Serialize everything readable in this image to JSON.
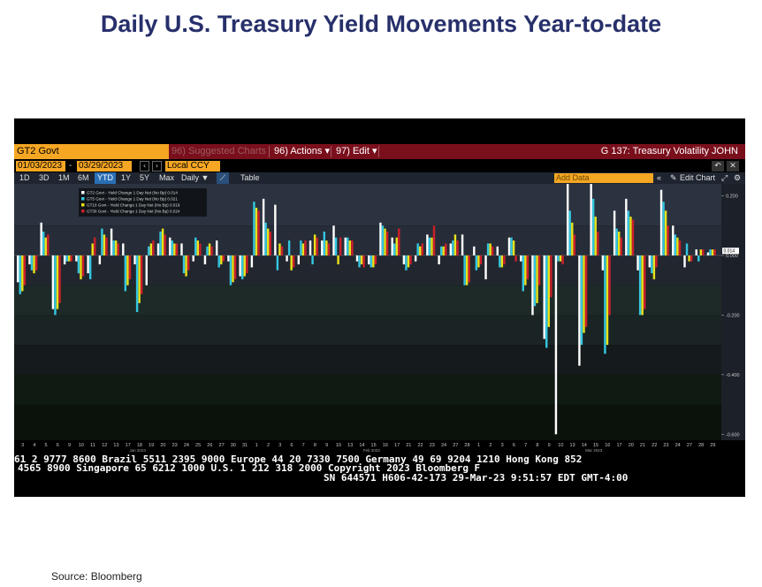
{
  "page": {
    "title": "Daily U.S. Treasury Yield Movements Year-to-date",
    "source": "Source: Bloomberg"
  },
  "terminal": {
    "ticker": "GT2 Govt",
    "suggested": "96) Suggested Charts",
    "actions": "96) Actions ▾",
    "edit": "97) Edit ▾",
    "right_title": "G 137: Treasury Volatility JOHN",
    "start_date": "01/03/2023",
    "end_date": "03/29/2023",
    "currency": "Local CCY",
    "ranges": [
      "1D",
      "3D",
      "1M",
      "6M",
      "YTD",
      "1Y",
      "5Y",
      "Max"
    ],
    "active_range": "YTD",
    "frequency": "Daily ▼",
    "table": "Table",
    "add_data": "Add Data",
    "edit_chart": "Edit Chart",
    "footer_lines": [
      "61 2 9777 8600 Brazil 5511 2395 9000 Europe 44 20 7330 7500 Germany 49 69 9204 1210 Hong Kong 852",
      "4565 8900      Singapore 65 6212 1000     U.S. 1 212 318 2000     Copyright 2023 Bloomberg F",
      "SN 644571 H606-42-173 29-Mar-23  9:51:57 EDT  GMT-4:00"
    ]
  },
  "colors": {
    "gt2": "#ffffff",
    "gt5": "#33c6e0",
    "gt10": "#e8e21a",
    "gt30": "#cc1f2a",
    "accent_orange": "#f5a623",
    "header_red": "#7a0f1c",
    "title_navy": "#27306b"
  },
  "chart_data": {
    "type": "bar",
    "title": "",
    "xlabel": "",
    "ylabel": "",
    "ylim": [
      -0.62,
      0.24
    ],
    "yticks": [
      0.2,
      0.0,
      -0.2,
      -0.4,
      -0.6
    ],
    "ytick_labels": [
      "0.200",
      "0.000",
      "-0.200",
      "-0.400",
      "-0.600"
    ],
    "last_value_label": "0.014",
    "categories": [
      "3",
      "4",
      "5",
      "6",
      "9",
      "10",
      "11",
      "12",
      "13",
      "17",
      "18",
      "19",
      "20",
      "23",
      "24",
      "25",
      "26",
      "27",
      "30",
      "31",
      "1",
      "2",
      "3",
      "6",
      "7",
      "8",
      "9",
      "10",
      "13",
      "14",
      "15",
      "16",
      "17",
      "21",
      "22",
      "23",
      "24",
      "27",
      "28",
      "1",
      "2",
      "3",
      "6",
      "7",
      "8",
      "9",
      "10",
      "13",
      "14",
      "15",
      "16",
      "17",
      "20",
      "21",
      "22",
      "23",
      "24",
      "27",
      "28",
      "29"
    ],
    "month_labels": [
      {
        "label": "Jan 2023",
        "at": "3"
      },
      {
        "label": "Feb 2023",
        "at": "1"
      },
      {
        "label": "Mar 2023",
        "at": "1"
      }
    ],
    "legend": [
      "GT2 Govt - Yield Change 1 Day Net (No Bp)  0.014",
      "GT5 Govt - Yield Change 1 Day Net (No Bp)  0.021",
      "GT10 Govt - Yield Change 1 Day Net (No Bp)  0.019",
      "GT30 Govt - Yield Change 1 Day Net (No Bp)  0.024"
    ],
    "series": [
      {
        "name": "GT2 Govt - Yield Change 1 Day Net (No Bp)",
        "values": [
          -0.09,
          -0.03,
          0.11,
          -0.18,
          -0.03,
          -0.02,
          -0.06,
          -0.03,
          0.09,
          0.04,
          -0.03,
          -0.1,
          0.04,
          0.06,
          0.04,
          -0.02,
          -0.03,
          0.05,
          -0.02,
          -0.07,
          -0.04,
          0.19,
          0.17,
          -0.02,
          -0.03,
          0.05,
          0.05,
          0.1,
          0.06,
          -0.02,
          -0.03,
          0.11,
          0.06,
          -0.03,
          -0.02,
          0.07,
          -0.03,
          0.04,
          0.07,
          0.03,
          -0.08,
          0.03,
          0.06,
          -0.02,
          -0.2,
          -0.28,
          -0.6,
          0.27,
          -0.37,
          0.27,
          -0.05,
          0.15,
          0.19,
          -0.05,
          -0.04,
          0.22,
          0.1,
          -0.04,
          0.02,
          0.01
        ]
      },
      {
        "name": "GT5 Govt - Yield Change 1 Day Net (No Bp)",
        "values": [
          -0.13,
          -0.05,
          0.08,
          -0.2,
          -0.02,
          -0.06,
          -0.08,
          0.09,
          0.05,
          -0.12,
          -0.19,
          0.03,
          0.08,
          0.05,
          -0.06,
          0.06,
          0.03,
          -0.04,
          -0.1,
          -0.08,
          0.18,
          0.11,
          -0.05,
          0.05,
          0.05,
          -0.03,
          0.08,
          0.06,
          0.06,
          -0.04,
          -0.04,
          0.1,
          0.04,
          -0.05,
          0.04,
          0.06,
          0.03,
          0.05,
          -0.1,
          -0.05,
          0.04,
          -0.04,
          0.06,
          -0.12,
          -0.17,
          -0.31,
          -0.02,
          0.15,
          -0.3,
          0.19,
          -0.33,
          0.09,
          0.15,
          -0.2,
          -0.06,
          0.18,
          0.07,
          0.04,
          -0.02,
          0.02
        ]
      },
      {
        "name": "GT10 Govt - Yield Change 1 Day Net (No Bp)",
        "values": [
          -0.12,
          -0.06,
          0.06,
          -0.18,
          -0.02,
          -0.08,
          0.04,
          0.07,
          0.05,
          -0.1,
          -0.16,
          0.04,
          0.09,
          0.04,
          -0.07,
          0.05,
          0.04,
          -0.03,
          -0.09,
          -0.07,
          0.16,
          0.09,
          0.04,
          -0.05,
          0.04,
          0.07,
          0.05,
          -0.03,
          0.05,
          -0.03,
          -0.04,
          0.09,
          0.06,
          -0.04,
          0.03,
          0.06,
          0.03,
          0.07,
          -0.1,
          -0.04,
          0.04,
          -0.04,
          0.05,
          -0.1,
          -0.16,
          -0.24,
          -0.02,
          0.11,
          -0.26,
          0.13,
          -0.3,
          0.08,
          0.13,
          -0.2,
          -0.08,
          0.15,
          0.06,
          -0.02,
          0.02,
          0.02
        ]
      },
      {
        "name": "GT30 Govt - Yield Change 1 Day Net (No Bp)",
        "values": [
          -0.1,
          -0.05,
          0.07,
          -0.16,
          -0.02,
          -0.07,
          0.06,
          0.06,
          0.04,
          -0.08,
          -0.13,
          0.05,
          0.07,
          0.04,
          -0.05,
          0.04,
          0.03,
          -0.02,
          -0.08,
          -0.06,
          0.15,
          0.08,
          0.03,
          -0.04,
          0.05,
          0.06,
          0.04,
          0.06,
          0.05,
          -0.04,
          -0.03,
          0.08,
          0.09,
          -0.03,
          0.04,
          0.1,
          0.04,
          0.05,
          -0.09,
          -0.03,
          0.03,
          -0.03,
          -0.02,
          -0.08,
          -0.1,
          -0.14,
          -0.03,
          0.07,
          -0.24,
          0.08,
          -0.2,
          0.06,
          0.12,
          -0.18,
          -0.04,
          0.1,
          0.05,
          -0.02,
          0.02,
          0.02
        ]
      }
    ],
    "grid": false,
    "legend_position": "top-left"
  }
}
